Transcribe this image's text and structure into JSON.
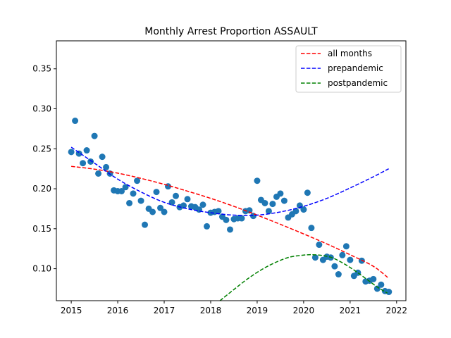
{
  "chart_data": {
    "type": "scatter",
    "title": "Monthly Arrest Proportion ASSAULT",
    "xlabel": "",
    "ylabel": "",
    "xlim": [
      2014.68,
      2022.2
    ],
    "ylim": [
      0.06,
      0.385
    ],
    "xticks": [
      2015,
      2016,
      2017,
      2018,
      2019,
      2020,
      2021,
      2022
    ],
    "yticks": [
      0.1,
      0.15,
      0.2,
      0.25,
      0.3,
      0.35
    ],
    "grid": false,
    "legend_placement": "top-right",
    "points_color": "#1f77b4",
    "points": [
      [
        2015.0,
        0.246
      ],
      [
        2015.083,
        0.285
      ],
      [
        2015.167,
        0.244
      ],
      [
        2015.25,
        0.232
      ],
      [
        2015.333,
        0.248
      ],
      [
        2015.417,
        0.234
      ],
      [
        2015.5,
        0.266
      ],
      [
        2015.583,
        0.219
      ],
      [
        2015.667,
        0.24
      ],
      [
        2015.75,
        0.227
      ],
      [
        2015.833,
        0.219
      ],
      [
        2015.917,
        0.198
      ],
      [
        2016.0,
        0.197
      ],
      [
        2016.083,
        0.197
      ],
      [
        2016.167,
        0.202
      ],
      [
        2016.25,
        0.182
      ],
      [
        2016.333,
        0.194
      ],
      [
        2016.417,
        0.21
      ],
      [
        2016.5,
        0.185
      ],
      [
        2016.583,
        0.155
      ],
      [
        2016.667,
        0.175
      ],
      [
        2016.75,
        0.171
      ],
      [
        2016.833,
        0.196
      ],
      [
        2016.917,
        0.176
      ],
      [
        2017.0,
        0.171
      ],
      [
        2017.083,
        0.203
      ],
      [
        2017.167,
        0.183
      ],
      [
        2017.25,
        0.191
      ],
      [
        2017.333,
        0.177
      ],
      [
        2017.417,
        0.179
      ],
      [
        2017.5,
        0.187
      ],
      [
        2017.583,
        0.178
      ],
      [
        2017.667,
        0.177
      ],
      [
        2017.75,
        0.174
      ],
      [
        2017.833,
        0.18
      ],
      [
        2017.917,
        0.153
      ],
      [
        2018.0,
        0.17
      ],
      [
        2018.083,
        0.171
      ],
      [
        2018.167,
        0.172
      ],
      [
        2018.25,
        0.165
      ],
      [
        2018.333,
        0.161
      ],
      [
        2018.417,
        0.149
      ],
      [
        2018.5,
        0.162
      ],
      [
        2018.583,
        0.163
      ],
      [
        2018.667,
        0.163
      ],
      [
        2018.75,
        0.172
      ],
      [
        2018.833,
        0.173
      ],
      [
        2018.917,
        0.166
      ],
      [
        2019.0,
        0.21
      ],
      [
        2019.083,
        0.186
      ],
      [
        2019.167,
        0.182
      ],
      [
        2019.25,
        0.172
      ],
      [
        2019.333,
        0.181
      ],
      [
        2019.417,
        0.19
      ],
      [
        2019.5,
        0.194
      ],
      [
        2019.583,
        0.185
      ],
      [
        2019.667,
        0.164
      ],
      [
        2019.75,
        0.168
      ],
      [
        2019.833,
        0.172
      ],
      [
        2019.917,
        0.179
      ],
      [
        2020.0,
        0.174
      ],
      [
        2020.083,
        0.195
      ],
      [
        2020.167,
        0.151
      ],
      [
        2020.25,
        0.114
      ],
      [
        2020.333,
        0.13
      ],
      [
        2020.417,
        0.111
      ],
      [
        2020.5,
        0.115
      ],
      [
        2020.583,
        0.114
      ],
      [
        2020.667,
        0.103
      ],
      [
        2020.75,
        0.093
      ],
      [
        2020.833,
        0.117
      ],
      [
        2020.917,
        0.128
      ],
      [
        2021.0,
        0.111
      ],
      [
        2021.083,
        0.091
      ],
      [
        2021.167,
        0.095
      ],
      [
        2021.25,
        0.11
      ],
      [
        2021.333,
        0.084
      ],
      [
        2021.417,
        0.085
      ],
      [
        2021.5,
        0.087
      ],
      [
        2021.583,
        0.075
      ],
      [
        2021.667,
        0.08
      ],
      [
        2021.75,
        0.072
      ],
      [
        2021.833,
        0.071
      ]
    ],
    "series": [
      {
        "name": "all months",
        "color": "#ff0000",
        "style": "dashed",
        "x": [
          2015.0,
          2015.5,
          2016.0,
          2016.5,
          2017.0,
          2017.5,
          2018.0,
          2018.5,
          2019.0,
          2019.5,
          2020.0,
          2020.5,
          2021.0,
          2021.5,
          2021.83
        ],
        "y": [
          0.228,
          0.2245,
          0.2195,
          0.213,
          0.2055,
          0.197,
          0.188,
          0.178,
          0.167,
          0.1555,
          0.1435,
          0.131,
          0.1175,
          0.103,
          0.088
        ]
      },
      {
        "name": "prepandemic",
        "color": "#0000ff",
        "style": "dashed",
        "x": [
          2015.0,
          2015.5,
          2016.0,
          2016.5,
          2017.0,
          2017.5,
          2018.0,
          2018.5,
          2019.0,
          2019.5,
          2020.0,
          2020.5,
          2021.0,
          2021.5,
          2021.83
        ],
        "y": [
          0.252,
          0.232,
          0.212,
          0.196,
          0.183,
          0.175,
          0.17,
          0.167,
          0.167,
          0.171,
          0.178,
          0.188,
          0.201,
          0.215,
          0.225
        ]
      },
      {
        "name": "postpandemic",
        "color": "#008000",
        "style": "dashed",
        "x": [
          2018.2,
          2018.5,
          2018.8,
          2019.1,
          2019.4,
          2019.7,
          2020.0,
          2020.2,
          2020.4,
          2020.6,
          2020.8,
          2021.0,
          2021.2,
          2021.4,
          2021.6,
          2021.8
        ],
        "y": [
          0.06,
          0.074,
          0.0875,
          0.099,
          0.108,
          0.1145,
          0.117,
          0.1175,
          0.1165,
          0.114,
          0.1085,
          0.1015,
          0.0935,
          0.085,
          0.0765,
          0.0695
        ]
      }
    ]
  }
}
